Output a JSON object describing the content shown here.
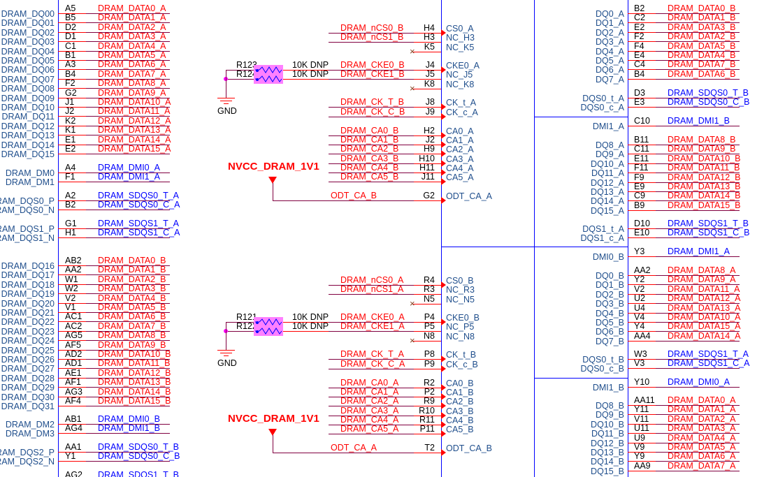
{
  "colors": {
    "net_red": "#ff0000",
    "net_blue": "#0000ff",
    "wire": "#800040",
    "box": "#0000ff",
    "label": "#1f4e8c",
    "resistor_fill": "#ff80ff",
    "junction": "#ff00ff"
  },
  "left": {
    "groups": [
      {
        "color": "red",
        "rows": [
          {
            "pin": "A5",
            "net": "DRAM_DATA0_A"
          },
          {
            "pin": "B5",
            "net": "DRAM_DATA1_A"
          },
          {
            "pin": "D2",
            "net": "DRAM_DATA2_A"
          },
          {
            "pin": "D1",
            "net": "DRAM_DATA3_A"
          },
          {
            "pin": "C1",
            "net": "DRAM_DATA4_A"
          },
          {
            "pin": "B1",
            "net": "DRAM_DATA5_A"
          },
          {
            "pin": "A3",
            "net": "DRAM_DATA6_A"
          },
          {
            "pin": "B4",
            "net": "DRAM_DATA7_A"
          },
          {
            "pin": "F2",
            "net": "DRAM_DATA8_A"
          },
          {
            "pin": "G2",
            "net": "DRAM_DATA9_A"
          },
          {
            "pin": "J1",
            "net": "DRAM_DATA10_A"
          },
          {
            "pin": "J2",
            "net": "DRAM_DATA11_A"
          },
          {
            "pin": "K2",
            "net": "DRAM_DATA12_A"
          },
          {
            "pin": "K1",
            "net": "DRAM_DATA13_A"
          },
          {
            "pin": "E1",
            "net": "DRAM_DATA14_A"
          },
          {
            "pin": "E2",
            "net": "DRAM_DATA15_A"
          }
        ],
        "labels": [
          "DRAM_DQ00",
          "DRAM_DQ01",
          "DRAM_DQ02",
          "DRAM_DQ03",
          "DRAM_DQ04",
          "DRAM_DQ05",
          "DRAM_DQ06",
          "DRAM_DQ07",
          "DRAM_DQ08",
          "DRAM_DQ09",
          "DRAM_DQ10",
          "DRAM_DQ11",
          "DRAM_DQ12",
          "DRAM_DQ13",
          "DRAM_DQ14",
          "DRAM_DQ15"
        ]
      },
      {
        "color": "blue",
        "rows": [
          {
            "pin": "A4",
            "net": "DRAM_DMI0_A"
          },
          {
            "pin": "F1",
            "net": "DRAM_DMI1_A"
          }
        ],
        "labels": [
          "DRAM_DM0",
          "DRAM_DM1"
        ]
      },
      {
        "color": "blue",
        "rows": [
          {
            "pin": "A2",
            "net": "DRAM_SDQS0_T_A"
          },
          {
            "pin": "B2",
            "net": "DRAM_SDQS0_C_A"
          }
        ],
        "labels": [
          "DRAM_DQS0_P",
          "DRAM_DQS0_N"
        ]
      },
      {
        "color": "blue",
        "rows": [
          {
            "pin": "G1",
            "net": "DRAM_SDQS1_T_A"
          },
          {
            "pin": "H1",
            "net": "DRAM_SDQS1_C_A"
          }
        ],
        "labels": [
          "DRAM_DQS1_P",
          "DRAM_DQS1_N"
        ]
      },
      {
        "color": "red",
        "rows": [
          {
            "pin": "AB2",
            "net": "DRAM_DATA0_B"
          },
          {
            "pin": "AA2",
            "net": "DRAM_DATA1_B"
          },
          {
            "pin": "W1",
            "net": "DRAM_DATA2_B"
          },
          {
            "pin": "W2",
            "net": "DRAM_DATA3_B"
          },
          {
            "pin": "V2",
            "net": "DRAM_DATA4_B"
          },
          {
            "pin": "V1",
            "net": "DRAM_DATA5_B"
          },
          {
            "pin": "AC1",
            "net": "DRAM_DATA6_B"
          },
          {
            "pin": "AC2",
            "net": "DRAM_DATA7_B"
          },
          {
            "pin": "AG5",
            "net": "DRAM_DATA8_B"
          },
          {
            "pin": "AF5",
            "net": "DRAM_DATA9_B"
          },
          {
            "pin": "AD2",
            "net": "DRAM_DATA10_B"
          },
          {
            "pin": "AD1",
            "net": "DRAM_DATA11_B"
          },
          {
            "pin": "AE1",
            "net": "DRAM_DATA12_B"
          },
          {
            "pin": "AF1",
            "net": "DRAM_DATA13_B"
          },
          {
            "pin": "AG3",
            "net": "DRAM_DATA14_B"
          },
          {
            "pin": "AF4",
            "net": "DRAM_DATA15_B"
          }
        ],
        "labels": [
          "DRAM_DQ16",
          "DRAM_DQ17",
          "DRAM_DQ18",
          "DRAM_DQ19",
          "DRAM_DQ20",
          "DRAM_DQ21",
          "DRAM_DQ22",
          "DRAM_DQ23",
          "DRAM_DQ24",
          "DRAM_DQ25",
          "DRAM_DQ26",
          "DRAM_DQ27",
          "DRAM_DQ28",
          "DRAM_DQ29",
          "DRAM_DQ30",
          "DRAM_DQ31"
        ]
      },
      {
        "color": "blue",
        "rows": [
          {
            "pin": "AB1",
            "net": "DRAM_DMI0_B"
          },
          {
            "pin": "AG4",
            "net": "DRAM_DMI1_B"
          }
        ],
        "labels": [
          "DRAM_DM2",
          "DRAM_DM3"
        ]
      },
      {
        "color": "blue",
        "rows": [
          {
            "pin": "AA1",
            "net": "DRAM_SDQS0_T_B"
          },
          {
            "pin": "Y1",
            "net": "DRAM_SDQS0_C_B"
          }
        ],
        "labels": [
          "DRAM_DQS2_P",
          "DRAM_DQS2_N"
        ]
      },
      {
        "color": "blue",
        "rows": [
          {
            "pin": "AG2",
            "net": "DRAM_SDQS1_T_B"
          }
        ],
        "labels": []
      }
    ]
  },
  "right": {
    "groups": [
      {
        "color": "red",
        "rows": [
          {
            "pin": "B2",
            "net": "DRAM_DATA0_B"
          },
          {
            "pin": "C2",
            "net": "DRAM_DATA1_B"
          },
          {
            "pin": "E2",
            "net": "DRAM_DATA3_B"
          },
          {
            "pin": "F2",
            "net": "DRAM_DATA2_B"
          },
          {
            "pin": "F4",
            "net": "DRAM_DATA5_B"
          },
          {
            "pin": "E4",
            "net": "DRAM_DATA4_B"
          },
          {
            "pin": "C4",
            "net": "DRAM_DATA7_B"
          },
          {
            "pin": "B4",
            "net": "DRAM_DATA6_B"
          }
        ],
        "labels": [
          "DQ0_A",
          "DQ1_A",
          "DQ2_A",
          "DQ3_A",
          "DQ4_A",
          "DQ5_A",
          "DQ6_A",
          "DQ7_A"
        ]
      },
      {
        "color": "blue",
        "rows": [
          {
            "pin": "D3",
            "net": "DRAM_SDQS0_T_B"
          },
          {
            "pin": "E3",
            "net": "DRAM_SDQS0_C_B"
          }
        ],
        "labels": [
          "DQS0_t_A",
          "DQS0_c_A"
        ]
      },
      {
        "color": "blue",
        "rows": [
          {
            "pin": "C10",
            "net": "DRAM_DMI1_B"
          }
        ],
        "labels": [
          "DMI1_A"
        ]
      },
      {
        "color": "red",
        "rows": [
          {
            "pin": "B11",
            "net": "DRAM_DATA8_B"
          },
          {
            "pin": "C11",
            "net": "DRAM_DATA9_B"
          },
          {
            "pin": "E11",
            "net": "DRAM_DATA10_B"
          },
          {
            "pin": "F11",
            "net": "DRAM_DATA11_B"
          },
          {
            "pin": "F9",
            "net": "DRAM_DATA12_B"
          },
          {
            "pin": "E9",
            "net": "DRAM_DATA13_B"
          },
          {
            "pin": "C9",
            "net": "DRAM_DATA14_B"
          },
          {
            "pin": "B9",
            "net": "DRAM_DATA15_B"
          }
        ],
        "labels": [
          "DQ8_A",
          "DQ9_A",
          "DQ10_A",
          "DQ11_A",
          "DQ12_A",
          "DQ13_A",
          "DQ14_A",
          "DQ15_A"
        ]
      },
      {
        "color": "blue",
        "rows": [
          {
            "pin": "D10",
            "net": "DRAM_SDQS1_T_B"
          },
          {
            "pin": "E10",
            "net": "DRAM_SDQS1_C_B"
          }
        ],
        "labels": [
          "DQS1_t_A",
          "DQS1_c_A"
        ]
      },
      {
        "color": "blue",
        "rows": [
          {
            "pin": "Y3",
            "net": "DRAM_DMI1_A"
          }
        ],
        "labels": [
          "DMI0_B"
        ]
      },
      {
        "color": "red",
        "rows": [
          {
            "pin": "AA2",
            "net": "DRAM_DATA8_A"
          },
          {
            "pin": "Y2",
            "net": "DRAM_DATA9_A"
          },
          {
            "pin": "V2",
            "net": "DRAM_DATA11_A"
          },
          {
            "pin": "U2",
            "net": "DRAM_DATA12_A"
          },
          {
            "pin": "U4",
            "net": "DRAM_DATA13_A"
          },
          {
            "pin": "V4",
            "net": "DRAM_DATA10_A"
          },
          {
            "pin": "Y4",
            "net": "DRAM_DATA15_A"
          },
          {
            "pin": "AA4",
            "net": "DRAM_DATA14_A"
          }
        ],
        "labels": [
          "DQ0_B",
          "DQ1_B",
          "DQ2_B",
          "DQ3_B",
          "DQ4_B",
          "DQ5_B",
          "DQ6_B",
          "DQ7_B"
        ]
      },
      {
        "color": "blue",
        "rows": [
          {
            "pin": "W3",
            "net": "DRAM_SDQS1_T_A"
          },
          {
            "pin": "V3",
            "net": "DRAM_SDQS1_C_A"
          }
        ],
        "labels": [
          "DQS0_t_B",
          "DQS0_c_B"
        ]
      },
      {
        "color": "blue",
        "rows": [
          {
            "pin": "Y10",
            "net": "DRAM_DMI0_A"
          }
        ],
        "labels": [
          "DMI1_B"
        ]
      },
      {
        "color": "red",
        "rows": [
          {
            "pin": "AA11",
            "net": "DRAM_DATA0_A"
          },
          {
            "pin": "Y11",
            "net": "DRAM_DATA1_A"
          },
          {
            "pin": "V11",
            "net": "DRAM_DATA2_A"
          },
          {
            "pin": "U11",
            "net": "DRAM_DATA3_A"
          },
          {
            "pin": "U9",
            "net": "DRAM_DATA4_A"
          },
          {
            "pin": "V9",
            "net": "DRAM_DATA5_A"
          },
          {
            "pin": "Y9",
            "net": "DRAM_DATA6_A"
          },
          {
            "pin": "AA9",
            "net": "DRAM_DATA7_A"
          }
        ],
        "labels": [
          "DQ8_B",
          "DQ9_B",
          "DQ10_B",
          "DQ11_B",
          "DQ12_B",
          "DQ13_B",
          "DQ14_B",
          "DQ15_B"
        ]
      }
    ]
  },
  "middle": {
    "blocks": [
      {
        "rows": [
          {
            "net": "DRAM_nCS0_B",
            "pin": "H4",
            "label": "CS0_A",
            "type": "arrow"
          },
          {
            "net": "DRAM_nCS1_B",
            "pin": "H3",
            "label": "NC_H3",
            "type": "plain"
          },
          {
            "net": "",
            "pin": "K5",
            "label": "NC_K5",
            "type": "nc"
          },
          {
            "net": "DRAM_CKE0_B",
            "pin": "J4",
            "label": "CKE0_A",
            "type": "arrow"
          },
          {
            "net": "DRAM_CKE1_B",
            "pin": "J5",
            "label": "NC_J5",
            "type": "plain"
          },
          {
            "net": "",
            "pin": "K8",
            "label": "NC_K8",
            "type": "nc"
          },
          {
            "net": "DRAM_CK_T_B",
            "pin": "J8",
            "label": "CK_t_A",
            "type": "arrow"
          },
          {
            "net": "DRAM_CK_C_B",
            "pin": "J9",
            "label": "CK_c_A",
            "type": "arrow"
          },
          {
            "net": "DRAM_CA0_B",
            "pin": "H2",
            "label": "CA0_A",
            "type": "arrow"
          },
          {
            "net": "DRAM_CA1_B",
            "pin": "J2",
            "label": "CA1_A",
            "type": "arrow"
          },
          {
            "net": "DRAM_CA2_B",
            "pin": "H9",
            "label": "CA2_A",
            "type": "arrow"
          },
          {
            "net": "DRAM_CA3_B",
            "pin": "H10",
            "label": "CA3_A",
            "type": "arrow"
          },
          {
            "net": "DRAM_CA4_B",
            "pin": "H11",
            "label": "CA4_A",
            "type": "arrow"
          },
          {
            "net": "DRAM_CA5_B",
            "pin": "J11",
            "label": "CA5_A",
            "type": "arrow"
          },
          {
            "net": "ODT_CA_B",
            "pin": "G2",
            "label": "ODT_CA_A",
            "type": "odt"
          }
        ],
        "resistors": [
          {
            "ref": "R123",
            "value": "10K DNP"
          },
          {
            "ref": "R124",
            "value": "10K DNP"
          }
        ],
        "gnd": "GND",
        "power": "NVCC_DRAM_1V1"
      },
      {
        "rows": [
          {
            "net": "DRAM_nCS0_A",
            "pin": "R4",
            "label": "CS0_B",
            "type": "arrow"
          },
          {
            "net": "DRAM_nCS1_A",
            "pin": "R3",
            "label": "NC_R3",
            "type": "plain"
          },
          {
            "net": "",
            "pin": "N5",
            "label": "NC_N5",
            "type": "nc"
          },
          {
            "net": "DRAM_CKE0_A",
            "pin": "P4",
            "label": "CKE0_B",
            "type": "arrow"
          },
          {
            "net": "DRAM_CKE1_A",
            "pin": "P5",
            "label": "NC_P5",
            "type": "plain"
          },
          {
            "net": "",
            "pin": "N8",
            "label": "NC_N8",
            "type": "nc"
          },
          {
            "net": "DRAM_CK_T_A",
            "pin": "P8",
            "label": "CK_t_B",
            "type": "arrow"
          },
          {
            "net": "DRAM_CK_C_A",
            "pin": "P9",
            "label": "CK_c_B",
            "type": "arrow"
          },
          {
            "net": "DRAM_CA0_A",
            "pin": "R2",
            "label": "CA0_B",
            "type": "arrow"
          },
          {
            "net": "DRAM_CA1_A",
            "pin": "P2",
            "label": "CA1_B",
            "type": "arrow"
          },
          {
            "net": "DRAM_CA2_A",
            "pin": "R9",
            "label": "CA2_B",
            "type": "arrow"
          },
          {
            "net": "DRAM_CA3_A",
            "pin": "R10",
            "label": "CA3_B",
            "type": "arrow"
          },
          {
            "net": "DRAM_CA4_A",
            "pin": "R11",
            "label": "CA4_B",
            "type": "arrow"
          },
          {
            "net": "DRAM_CA5_A",
            "pin": "P11",
            "label": "CA5_B",
            "type": "arrow"
          },
          {
            "net": "ODT_CA_A",
            "pin": "T2",
            "label": "ODT_CA_B",
            "type": "odt"
          }
        ],
        "resistors": [
          {
            "ref": "R121",
            "value": "10K DNP"
          },
          {
            "ref": "R122",
            "value": "10K DNP"
          }
        ],
        "gnd": "GND",
        "power": "NVCC_DRAM_1V1"
      }
    ]
  }
}
